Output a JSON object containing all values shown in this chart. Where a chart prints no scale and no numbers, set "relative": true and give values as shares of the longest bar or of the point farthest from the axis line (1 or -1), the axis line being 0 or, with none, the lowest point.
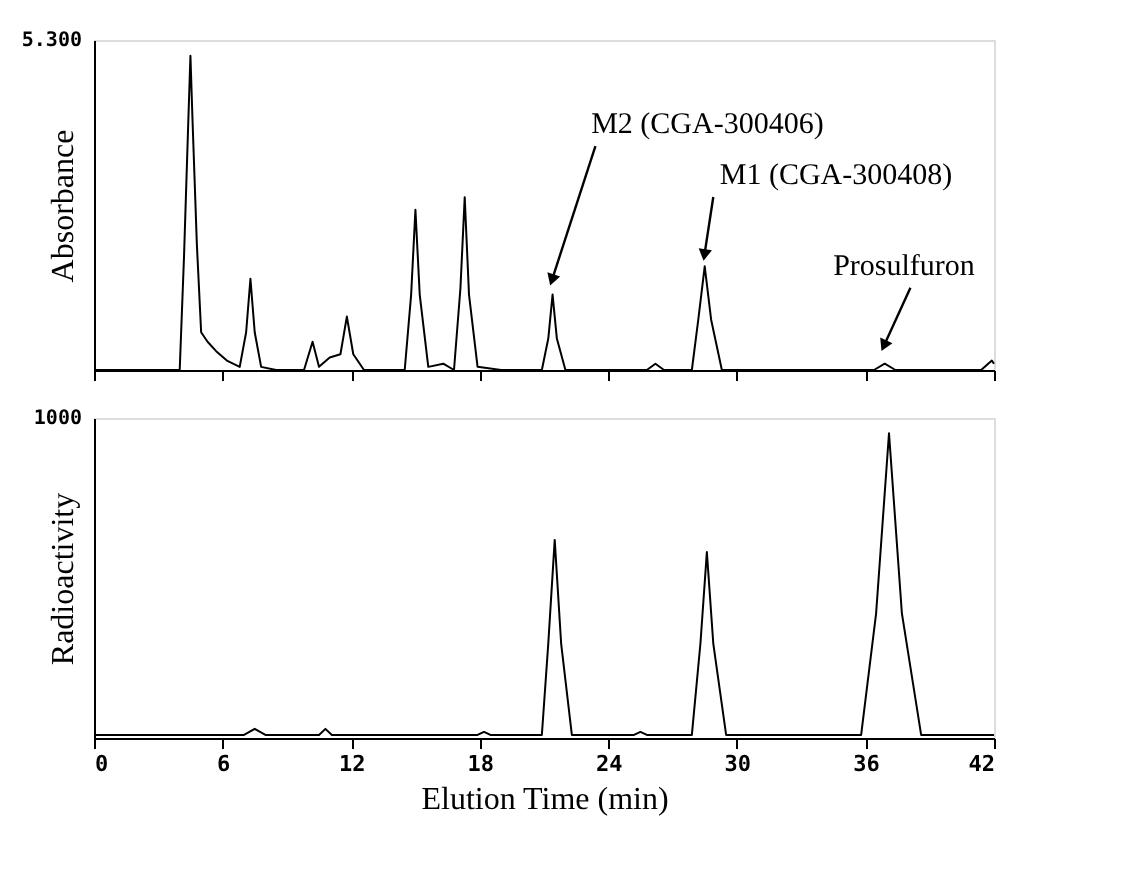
{
  "chart_data": [
    {
      "type": "line",
      "ylabel": "Absorbance",
      "tick_labels": "y",
      "grid": false,
      "relative": true,
      "x": [
        0,
        4.0,
        4.2,
        4.4,
        4.5,
        4.6,
        4.8,
        5.0,
        5.3,
        5.7,
        6.2,
        6.8,
        7.1,
        7.3,
        7.5,
        7.8,
        8.5,
        9.8,
        10.2,
        10.5,
        11.0,
        11.5,
        11.8,
        12.1,
        12.6,
        14.5,
        14.8,
        15.0,
        15.2,
        15.6,
        16.3,
        16.8,
        17.1,
        17.3,
        17.5,
        17.9,
        19,
        20.9,
        21.2,
        21.4,
        21.6,
        22.0,
        25.8,
        26.2,
        26.6,
        27.9,
        28.2,
        28.5,
        28.8,
        29.3,
        33,
        36.4,
        36.9,
        37.4,
        41.4,
        41.9,
        42
      ],
      "series": [
        {
          "color": "#000000",
          "values": [
            0,
            0,
            0.36,
            0.79,
            1,
            0.79,
            0.4,
            0.12,
            0.09,
            0.06,
            0.03,
            0.01,
            0.12,
            0.29,
            0.12,
            0.01,
            0,
            0,
            0.09,
            0.01,
            0.04,
            0.05,
            0.17,
            0.05,
            0,
            0,
            0.24,
            0.51,
            0.24,
            0.01,
            0.02,
            0,
            0.26,
            0.55,
            0.24,
            0.01,
            0,
            0,
            0.1,
            0.24,
            0.1,
            0,
            0,
            0.02,
            0,
            0,
            0.16,
            0.33,
            0.16,
            0,
            0,
            0,
            0.02,
            0,
            0,
            0.03,
            0.02
          ]
        }
      ],
      "xlim": [
        0,
        42
      ],
      "xticks": [
        0,
        6,
        12,
        18,
        24,
        30,
        36,
        42
      ],
      "annotations": [
        "5.300",
        {
          "text": "M2 (CGA-300406)",
          "x": 21.4,
          "y": 0.24
        },
        {
          "text": "M1 (CGA-300408)",
          "x": 28.5,
          "y": 0.33
        },
        {
          "text": "Prosulfuron",
          "x": 36.9,
          "y": 0.02
        }
      ]
    },
    {
      "type": "line",
      "ylabel": "Radioactivity",
      "xlabel": "Elution Time (min)",
      "grid": false,
      "relative": true,
      "x": [
        0,
        7.0,
        7.5,
        8.0,
        10.5,
        10.8,
        11.1,
        17.9,
        18.2,
        18.5,
        20.9,
        21.2,
        21.5,
        21.8,
        22.3,
        25.2,
        25.5,
        25.8,
        27.9,
        28.3,
        28.6,
        28.9,
        29.5,
        35.8,
        36.5,
        37.1,
        37.7,
        38.6,
        42
      ],
      "series": [
        {
          "color": "#000000",
          "values": [
            0.01,
            0.01,
            0.03,
            0.01,
            0.01,
            0.03,
            0.01,
            0.01,
            0.02,
            0.01,
            0.01,
            0.31,
            0.65,
            0.31,
            0.01,
            0.01,
            0.02,
            0.01,
            0.01,
            0.31,
            0.61,
            0.31,
            0.01,
            0.01,
            0.41,
            1,
            0.41,
            0.01,
            0.01
          ]
        }
      ],
      "xlim": [
        0,
        42
      ],
      "xticks": [
        0,
        6,
        12,
        18,
        24,
        30,
        36,
        42
      ],
      "annotations": [
        "1000"
      ]
    }
  ]
}
